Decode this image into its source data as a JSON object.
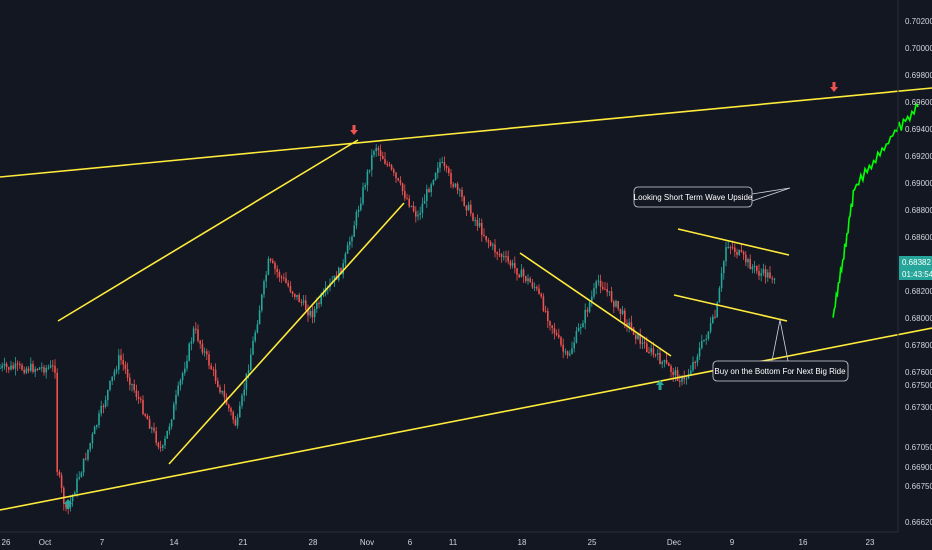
{
  "chart_data": {
    "type": "candlestick",
    "title": "",
    "xlabel": "",
    "ylabel": "",
    "ylim": [
      0.6662,
      0.7025
    ],
    "x_ticks": [
      "26",
      "Oct",
      "7",
      "14",
      "21",
      "28",
      "Nov",
      "6",
      "11",
      "18",
      "25",
      "Dec",
      "9",
      "16",
      "23"
    ],
    "y_ticks": [
      "0.70200",
      "0.70000",
      "0.69800",
      "0.69600",
      "0.69400",
      "0.69200",
      "0.69000",
      "0.68800",
      "0.68600",
      "0.68200",
      "0.68000",
      "0.67800",
      "0.67600",
      "0.67500",
      "0.67300",
      "0.67050",
      "0.66900",
      "0.66750",
      "0.66620"
    ],
    "last_price": "0.68382",
    "countdown": "01:43:54",
    "grid": false,
    "colors": {
      "background": "#131722",
      "up": "#26a69a",
      "down": "#ef5350",
      "trendline": "#ffeb3b",
      "projection": "#00ff00",
      "arrow_up": "#26a69a",
      "arrow_down": "#ef5350"
    },
    "price_path": [
      {
        "x": "Sep 26",
        "y": 0.6772
      },
      {
        "x": "Oct 1",
        "y": 0.6705
      },
      {
        "x": "Oct 2",
        "y": 0.6668
      },
      {
        "x": "Oct 7",
        "y": 0.678
      },
      {
        "x": "Oct 11",
        "y": 0.6712
      },
      {
        "x": "Oct 14",
        "y": 0.68
      },
      {
        "x": "Oct 18",
        "y": 0.673
      },
      {
        "x": "Oct 21",
        "y": 0.6848
      },
      {
        "x": "Oct 25",
        "y": 0.681
      },
      {
        "x": "Oct 28",
        "y": 0.6845
      },
      {
        "x": "Oct 31",
        "y": 0.6932
      },
      {
        "x": "Nov 4",
        "y": 0.688
      },
      {
        "x": "Nov 6",
        "y": 0.692
      },
      {
        "x": "Nov 11",
        "y": 0.6858
      },
      {
        "x": "Nov 15",
        "y": 0.683
      },
      {
        "x": "Nov 18",
        "y": 0.6778
      },
      {
        "x": "Nov 21",
        "y": 0.6835
      },
      {
        "x": "Nov 25",
        "y": 0.679
      },
      {
        "x": "Nov 29",
        "y": 0.6762
      },
      {
        "x": "Dec 2",
        "y": 0.681
      },
      {
        "x": "Dec 3",
        "y": 0.6862
      },
      {
        "x": "Dec 6",
        "y": 0.684
      },
      {
        "x": "Dec 9",
        "y": 0.6835
      },
      {
        "x": "Dec 11",
        "y": 0.6805
      },
      {
        "x": "Dec 13",
        "y": 0.6838
      }
    ],
    "projection_path": [
      {
        "x": "Dec 13",
        "y": 0.6808
      },
      {
        "x": "Dec 14",
        "y": 0.6852
      },
      {
        "x": "Dec 15",
        "y": 0.69
      },
      {
        "x": "Dec 17",
        "y": 0.6922
      },
      {
        "x": "Dec 19",
        "y": 0.6942
      },
      {
        "x": "Dec 21",
        "y": 0.696
      }
    ],
    "annotations": [
      {
        "name": "short-term-wave-label",
        "text": "Looking Short Term Wave Upside"
      },
      {
        "name": "buy-bottom-label",
        "text": "Buy on the Bottom For Next Big Ride"
      }
    ]
  }
}
